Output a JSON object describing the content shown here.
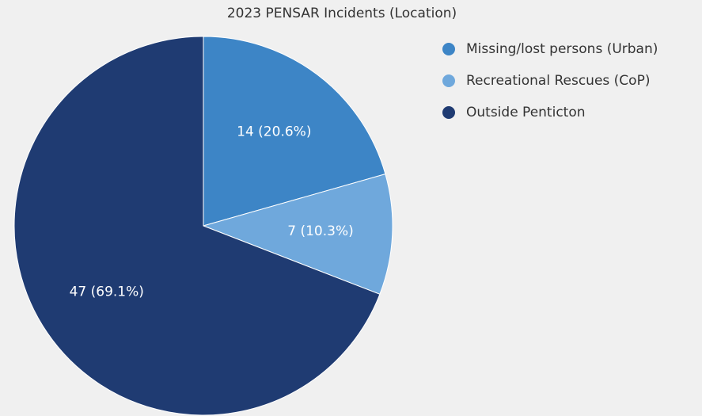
{
  "chart_data": {
    "type": "pie",
    "title": "2023 PENSAR Incidents (Location)",
    "categories": [
      "Missing/lost persons (Urban)",
      "Recreational Rescues (CoP)",
      "Outside Penticton"
    ],
    "values": [
      14,
      7,
      47
    ],
    "value_labels": [
      "14 (20.6%)",
      "7 (10.3%)",
      "47 (69.1%)"
    ],
    "colors": [
      "#3d85c6",
      "#6fa8dc",
      "#1f3b72"
    ],
    "legend": "top-right"
  }
}
